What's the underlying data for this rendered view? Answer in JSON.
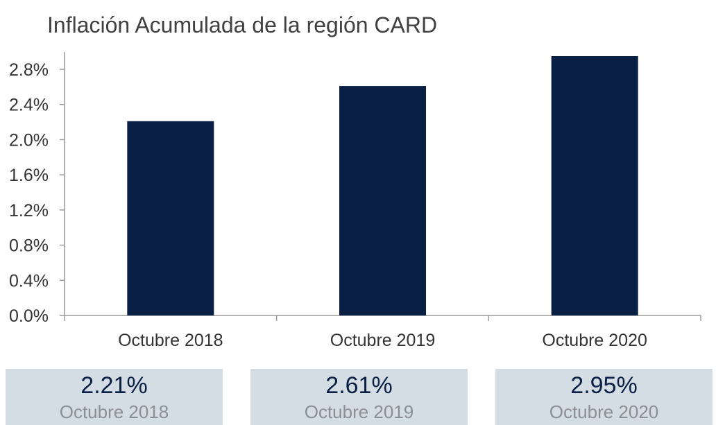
{
  "chart_data": {
    "type": "bar",
    "title": "Inflación Acumulada de la región CARD",
    "categories": [
      "Octubre 2018",
      "Octubre 2019",
      "Octubre 2020"
    ],
    "values": [
      2.21,
      2.61,
      2.95
    ],
    "value_unit": "%",
    "ylim": [
      0,
      3.0
    ],
    "yticks": [
      "0.0%",
      "0.4%",
      "0.8%",
      "1.2%",
      "1.6%",
      "2.0%",
      "2.4%",
      "2.8%"
    ],
    "xlabel": "",
    "ylabel": "",
    "grid": false,
    "bar_color": "#0a1f44"
  },
  "summary_boxes": [
    {
      "value": "2.21%",
      "label": "Octubre 2018"
    },
    {
      "value": "2.61%",
      "label": "Octubre 2019"
    },
    {
      "value": "2.95%",
      "label": "Octubre 2020"
    }
  ],
  "colors": {
    "bar": "#0a1f44",
    "summary_bg": "#d5dde4",
    "axis": "#9a9a9a"
  }
}
